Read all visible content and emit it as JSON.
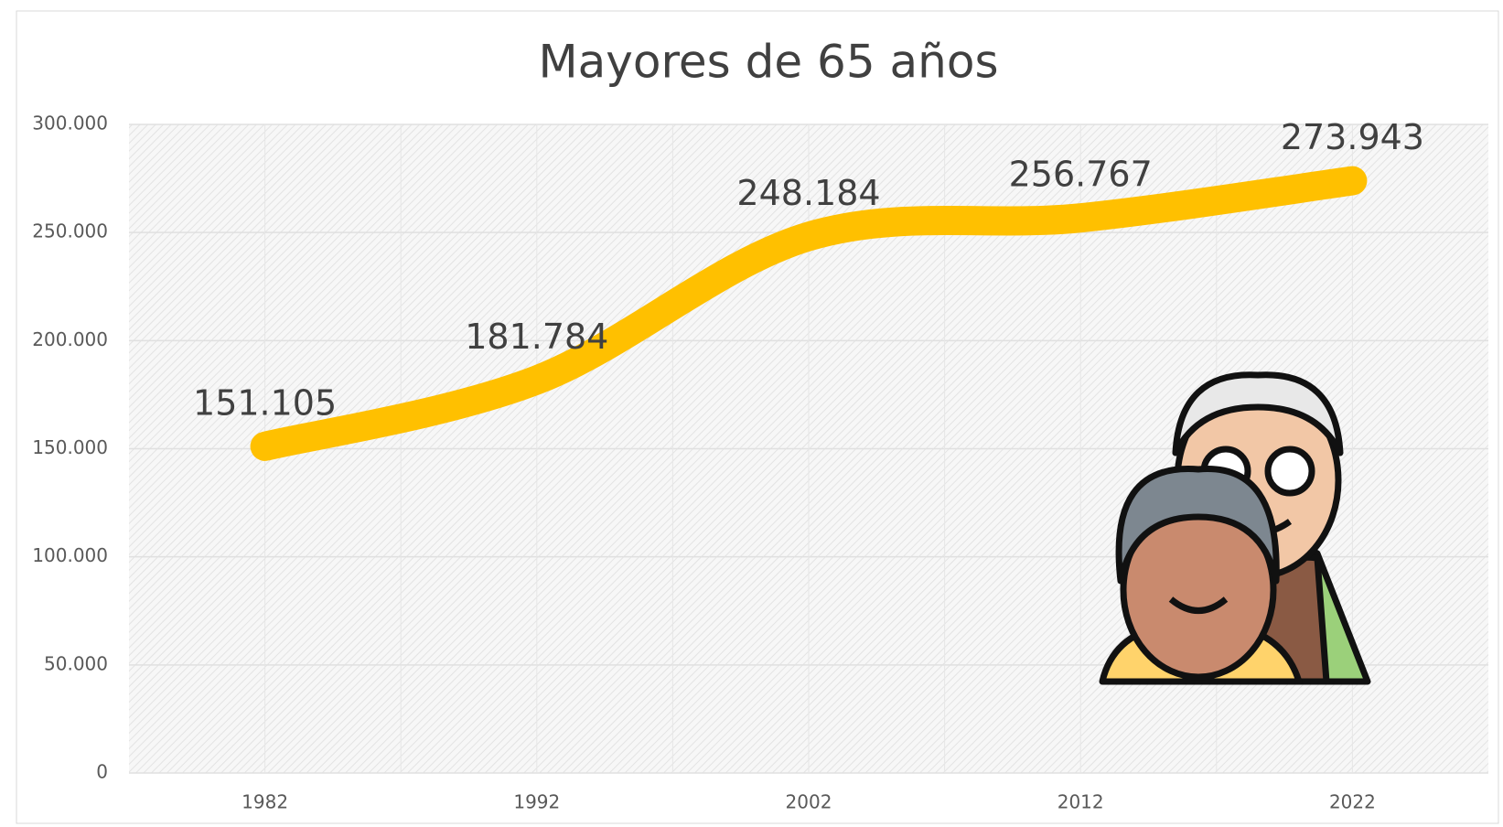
{
  "chart_data": {
    "type": "line",
    "title": "Mayores de 65 años",
    "categories": [
      "1982",
      "1992",
      "2002",
      "2012",
      "2022"
    ],
    "values": [
      151105,
      181784,
      248184,
      256767,
      273943
    ],
    "value_labels": [
      "151.105",
      "181.784",
      "248.184",
      "256.767",
      "273.943"
    ],
    "color": "#ffc000",
    "smooth": true,
    "grid": true,
    "ylim": [
      0,
      300000
    ],
    "yticks": [
      0,
      {
        "value": 50000,
        "label": "50.000"
      },
      {
        "value": 100000,
        "label": "100.000"
      },
      {
        "value": 150000,
        "label": "150.000"
      },
      {
        "value": 200000,
        "label": "200.000"
      },
      {
        "value": 250000,
        "label": "250.000"
      },
      {
        "value": 300000,
        "label": "300.000"
      }
    ]
  }
}
